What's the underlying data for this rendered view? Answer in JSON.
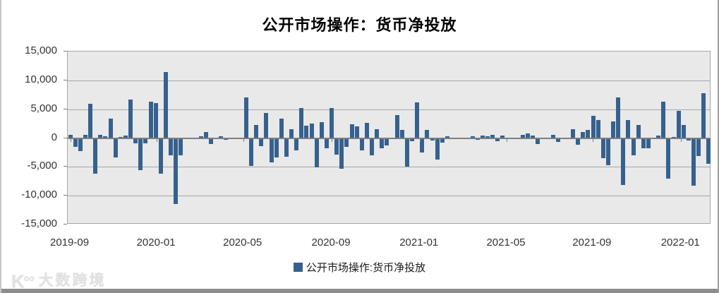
{
  "title": "公开市场操作：货币净投放",
  "legend": {
    "label": "公开市场操作:货币净投放"
  },
  "watermark": {
    "logo_main": "K",
    "logo_sup": "oo",
    "brand": "大数跨境"
  },
  "colors": {
    "bar": "#36618e",
    "plot_background": "#e9e9e9",
    "gridline": "#a6a6a6",
    "zero_line": "#7f7f7f",
    "axis_text": "#333333",
    "frame": "#8c8c8c"
  },
  "chart_data": {
    "type": "bar",
    "title": "公开市场操作：货币净投放",
    "xlabel": "",
    "ylabel": "",
    "ylim": [
      -15000,
      15000
    ],
    "grid": true,
    "legend_position": "bottom",
    "x_unit": "week",
    "x_range": [
      "2019-09",
      "2022-02"
    ],
    "y_tick_labels": [
      "15,000",
      "10,000",
      "5,000",
      "0",
      "-5,000",
      "-10,000",
      "-15,000"
    ],
    "x_tick_labels": [
      "2019-09",
      "2020-01",
      "2020-05",
      "2020-09",
      "2021-01",
      "2021-05",
      "2021-09",
      "2022-01"
    ],
    "x_tick_slots": [
      0,
      17.2,
      34.4,
      52.0,
      69.5,
      86.8,
      103.9,
      121.5
    ],
    "series": [
      {
        "name": "公开市场操作:货币净投放",
        "values": [
          600,
          -1500,
          -2300,
          500,
          5900,
          -6200,
          500,
          300,
          3400,
          -3400,
          200,
          400,
          6700,
          -900,
          -5600,
          -900,
          6300,
          6050,
          -6200,
          11500,
          -3000,
          -11400,
          -3000,
          0,
          0,
          0,
          250,
          1000,
          -1100,
          0,
          350,
          -250,
          0,
          0,
          0,
          7000,
          -4800,
          2300,
          -1400,
          4300,
          -4200,
          -3400,
          3400,
          -3300,
          1500,
          -2100,
          5200,
          2150,
          2450,
          -5050,
          2750,
          -1750,
          5200,
          -2900,
          -5300,
          -1500,
          2350,
          2050,
          -2200,
          2600,
          -3000,
          1500,
          -1800,
          -1300,
          0,
          4000,
          1350,
          -4900,
          -500,
          6200,
          -2450,
          1350,
          -400,
          -3700,
          -800,
          300,
          0,
          0,
          0,
          0,
          350,
          -350,
          400,
          350,
          600,
          -500,
          400,
          0,
          0,
          0,
          500,
          800,
          400,
          -1000,
          0,
          0,
          600,
          -700,
          0,
          0,
          1500,
          -1200,
          1100,
          1350,
          3900,
          3150,
          -3500,
          -4700,
          2900,
          7100,
          -8200,
          3100,
          -3000,
          2300,
          -1800,
          -1800,
          0,
          400,
          6300,
          -7100,
          200,
          4700,
          2300,
          -400,
          -8300,
          -3100,
          7800,
          -4500
        ]
      }
    ]
  }
}
